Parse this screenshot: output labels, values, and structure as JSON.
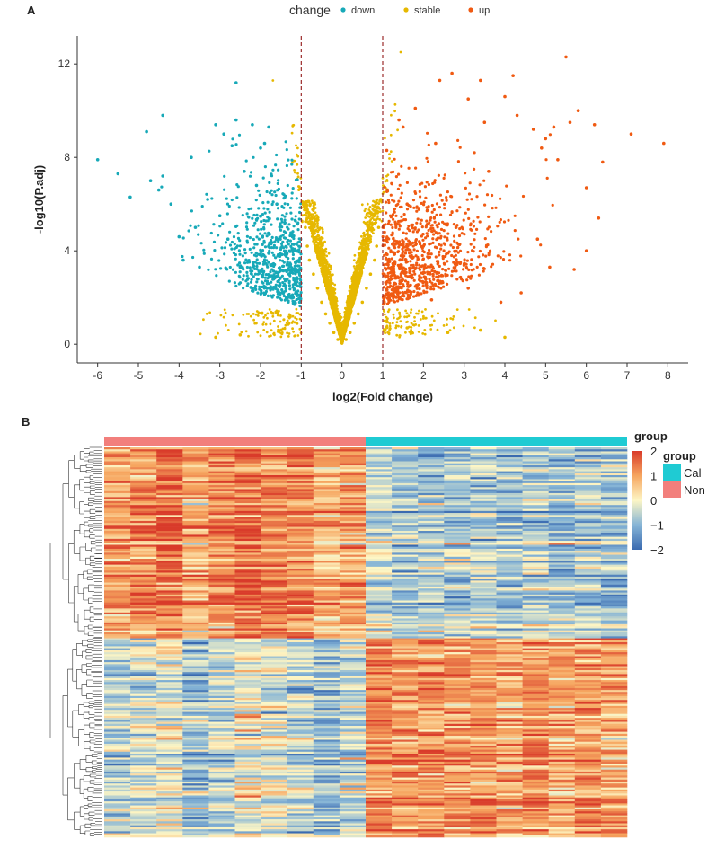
{
  "figure": {
    "panel_a": "A",
    "panel_b": "B"
  },
  "chart_data": [
    {
      "type": "scatter",
      "panel": "A",
      "xlabel": "log2(Fold change)",
      "ylabel": "-log10(P.adj)",
      "xlim": [
        -6.5,
        8.5
      ],
      "ylim": [
        -0.8,
        13.2
      ],
      "xticks": [
        -6,
        -5,
        -4,
        -3,
        -2,
        -1,
        0,
        1,
        2,
        3,
        4,
        5,
        6,
        7,
        8
      ],
      "yticks": [
        0,
        4,
        8,
        12
      ],
      "threshold_lines": {
        "x": [
          -1,
          1
        ],
        "style": "dashed",
        "color": "#9b2b2b"
      },
      "grid": false,
      "legend": {
        "title": "change",
        "position": "top",
        "items": [
          {
            "name": "down",
            "color": "#17a9b8"
          },
          {
            "name": "stable",
            "color": "#e6b800"
          },
          {
            "name": "up",
            "color": "#f05a12"
          }
        ]
      },
      "series": [
        {
          "name": "down",
          "color": "#17a9b8",
          "points": [
            [
              -6.0,
              7.9
            ],
            [
              -5.5,
              7.3
            ],
            [
              -5.2,
              6.3
            ],
            [
              -4.8,
              9.1
            ],
            [
              -4.7,
              7.0
            ],
            [
              -4.4,
              7.2
            ],
            [
              -4.5,
              6.6
            ],
            [
              -4.4,
              9.8
            ],
            [
              -4.2,
              6.0
            ],
            [
              -4.0,
              4.6
            ],
            [
              -3.9,
              3.6
            ],
            [
              -3.7,
              8.0
            ],
            [
              -3.5,
              3.3
            ],
            [
              -3.1,
              9.4
            ],
            [
              -2.9,
              9.0
            ],
            [
              -2.7,
              8.5
            ],
            [
              -2.6,
              9.6
            ],
            [
              -2.6,
              11.2
            ],
            [
              -2.2,
              9.4
            ],
            [
              -1.8,
              9.3
            ],
            [
              -1.9,
              8.6
            ],
            [
              -2.0,
              8.4
            ],
            [
              -3.3,
              6.2
            ],
            [
              -3.0,
              5.5
            ],
            [
              -2.8,
              4.5
            ],
            [
              -2.5,
              3.3
            ],
            [
              -2.2,
              2.4
            ],
            [
              -1.6,
              6.0
            ],
            [
              -1.4,
              5.2
            ],
            [
              -1.3,
              3.0
            ],
            [
              -1.2,
              2.0
            ],
            [
              -1.1,
              4.0
            ],
            [
              -3.6,
              5.0
            ],
            [
              -2.4,
              7.4
            ],
            [
              -2.1,
              6.8
            ]
          ]
        },
        {
          "name": "stable",
          "color": "#e6b800",
          "points": [
            [
              -0.95,
              6.0
            ],
            [
              -0.9,
              5.0
            ],
            [
              -0.85,
              4.2
            ],
            [
              -0.8,
              3.6
            ],
            [
              -0.7,
              3.0
            ],
            [
              -0.6,
              2.4
            ],
            [
              -0.5,
              1.8
            ],
            [
              -0.4,
              1.3
            ],
            [
              -0.3,
              0.9
            ],
            [
              -0.2,
              0.5
            ],
            [
              -0.1,
              0.2
            ],
            [
              0.0,
              0.05
            ],
            [
              0.1,
              0.2
            ],
            [
              0.2,
              0.5
            ],
            [
              0.3,
              0.9
            ],
            [
              0.4,
              1.3
            ],
            [
              0.5,
              1.8
            ],
            [
              0.6,
              2.4
            ],
            [
              0.7,
              3.0
            ],
            [
              0.8,
              3.6
            ],
            [
              0.85,
              4.2
            ],
            [
              0.9,
              5.0
            ],
            [
              0.95,
              6.2
            ],
            [
              -1.5,
              0.6
            ],
            [
              1.6,
              0.7
            ],
            [
              -2.5,
              0.4
            ],
            [
              2.6,
              0.5
            ],
            [
              3.4,
              0.6
            ],
            [
              -3.1,
              0.3
            ],
            [
              4.0,
              0.3
            ]
          ]
        },
        {
          "name": "up",
          "color": "#f05a12",
          "points": [
            [
              1.1,
              8.3
            ],
            [
              1.5,
              9.3
            ],
            [
              1.4,
              9.6
            ],
            [
              1.8,
              10.1
            ],
            [
              2.3,
              8.6
            ],
            [
              2.4,
              11.3
            ],
            [
              2.7,
              11.6
            ],
            [
              3.1,
              10.5
            ],
            [
              3.4,
              11.3
            ],
            [
              3.5,
              9.5
            ],
            [
              4.0,
              10.6
            ],
            [
              4.2,
              11.5
            ],
            [
              4.3,
              9.8
            ],
            [
              4.7,
              9.2
            ],
            [
              4.9,
              8.4
            ],
            [
              5.0,
              8.8
            ],
            [
              5.2,
              9.3
            ],
            [
              5.3,
              7.9
            ],
            [
              5.5,
              12.3
            ],
            [
              5.6,
              9.5
            ],
            [
              5.8,
              10.0
            ],
            [
              6.0,
              6.7
            ],
            [
              6.2,
              9.4
            ],
            [
              6.3,
              5.4
            ],
            [
              6.4,
              7.8
            ],
            [
              7.1,
              9.0
            ],
            [
              7.9,
              8.6
            ],
            [
              6.0,
              4.0
            ],
            [
              5.7,
              3.2
            ],
            [
              5.1,
              3.3
            ],
            [
              4.8,
              4.5
            ],
            [
              4.4,
              2.2
            ],
            [
              3.9,
              1.8
            ],
            [
              3.1,
              2.4
            ],
            [
              2.2,
              1.9
            ],
            [
              1.6,
              6.0
            ],
            [
              2.8,
              5.0
            ],
            [
              3.6,
              7.4
            ],
            [
              1.3,
              3.5
            ],
            [
              2.0,
              4.2
            ]
          ]
        }
      ]
    },
    {
      "type": "heatmap",
      "panel": "B",
      "clustered_rows": true,
      "n_rows": 196,
      "n_cols": 20,
      "color_scale": {
        "title": "group",
        "min": -2,
        "max": 2,
        "ticks": [
          2,
          1,
          0,
          -1,
          -2
        ],
        "colors": [
          "#3a6ab0",
          "#85b4d6",
          "#fdf6c5",
          "#f6a55f",
          "#d93b2a"
        ]
      },
      "annotation": {
        "title": "group",
        "items": [
          {
            "name": "Cal",
            "color": "#1fcbd3"
          },
          {
            "name": "Non",
            "color": "#f27f7c"
          }
        ],
        "column_groups": [
          {
            "name": "Non",
            "columns": 10
          },
          {
            "name": "Cal",
            "columns": 10
          }
        ]
      },
      "row_clusters": [
        {
          "rows": 96,
          "Non": "up",
          "Cal": "down"
        },
        {
          "rows": 100,
          "Non": "down",
          "Cal": "up"
        }
      ]
    }
  ]
}
